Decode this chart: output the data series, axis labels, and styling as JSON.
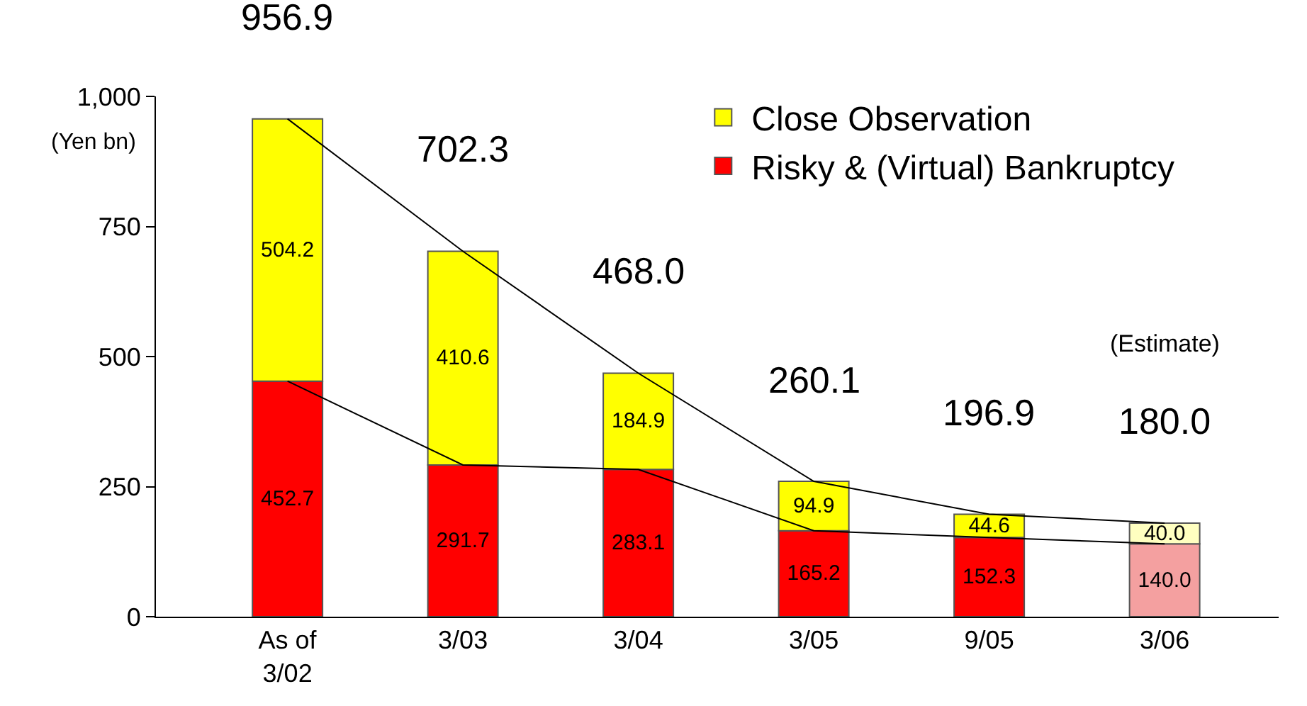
{
  "chart_data": {
    "type": "bar",
    "stacked": true,
    "categories": [
      "As of\n3/02",
      "3/03",
      "3/04",
      "3/05",
      "9/05",
      "3/06"
    ],
    "series": [
      {
        "name": "Risky & (Virtual) Bankruptcy",
        "color": "#ff0000",
        "colors": [
          null,
          null,
          null,
          null,
          null,
          "#f4a0a0"
        ],
        "values": [
          452.7,
          291.7,
          283.1,
          165.2,
          152.3,
          140.0
        ],
        "value_labels": [
          "452.7",
          "291.7",
          "283.1",
          "165.2",
          "152.3",
          "140.0"
        ]
      },
      {
        "name": "Close Observation",
        "color": "#ffff00",
        "colors": [
          null,
          null,
          null,
          null,
          null,
          "#ffffc0"
        ],
        "values": [
          504.2,
          410.6,
          184.9,
          94.9,
          44.6,
          40.0
        ],
        "value_labels": [
          "504.2",
          "410.6",
          "184.9",
          "94.9",
          "44.6",
          "40.0"
        ]
      },
      {
        "type": "line",
        "color": "#000000",
        "values": [
          452.7,
          291.7,
          283.1,
          165.2,
          152.3,
          140.0
        ]
      },
      {
        "type": "line",
        "color": "#000000",
        "values": [
          956.9,
          702.3,
          468.0,
          260.1,
          196.9,
          180.0
        ]
      }
    ],
    "totals": [
      "956.9",
      "702.3",
      "468.0",
      "260.1",
      "196.9",
      "180.0"
    ],
    "ylim": [
      0,
      1000
    ],
    "yticks": [
      0,
      250,
      500,
      750,
      {
        "value": 1000,
        "label": "1,000"
      }
    ],
    "annotations": [
      "(Yen bn)",
      "(Estimate)"
    ],
    "legend": "top right",
    "grid": false
  }
}
